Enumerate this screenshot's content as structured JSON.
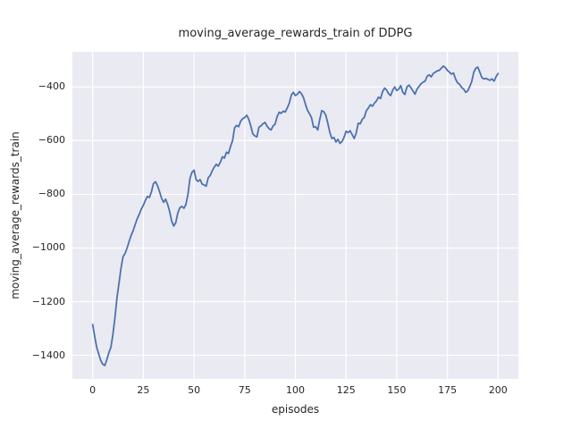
{
  "chart_data": {
    "type": "line",
    "title": "moving_average_rewards_train of DDPG",
    "xlabel": "episodes",
    "ylabel": "moving_average_rewards_train",
    "grid": true,
    "legend_position": "none",
    "xlim": [
      -10,
      210
    ],
    "ylim": [
      -1488,
      -269
    ],
    "x_ticks": [
      0,
      25,
      50,
      75,
      100,
      125,
      150,
      175,
      200
    ],
    "x_tick_labels": [
      "0",
      "25",
      "50",
      "75",
      "100",
      "125",
      "150",
      "175",
      "200"
    ],
    "y_ticks": [
      -400,
      -600,
      -800,
      -1000,
      -1200,
      -1400
    ],
    "y_tick_labels": [
      "−400",
      "−600",
      "−800",
      "−1000",
      "−1200",
      "−1400"
    ],
    "colors": {
      "figure_background": "#FFFFFF",
      "axes_background": "#EAEAF2",
      "gridline": "#FFFFFF",
      "line": "#4C72B0",
      "text": "#262626"
    },
    "series": [
      {
        "name": "moving_average_rewards_train",
        "color": "#4C72B0",
        "x_start": 0,
        "x_step": 1,
        "values": [
          -1285,
          -1330,
          -1370,
          -1395,
          -1420,
          -1433,
          -1438,
          -1415,
          -1390,
          -1370,
          -1320,
          -1260,
          -1185,
          -1130,
          -1075,
          -1032,
          -1020,
          -1000,
          -975,
          -952,
          -935,
          -912,
          -890,
          -875,
          -855,
          -841,
          -822,
          -808,
          -812,
          -790,
          -760,
          -753,
          -768,
          -790,
          -815,
          -830,
          -818,
          -838,
          -865,
          -900,
          -918,
          -905,
          -870,
          -850,
          -845,
          -852,
          -838,
          -800,
          -740,
          -718,
          -710,
          -745,
          -752,
          -745,
          -762,
          -765,
          -770,
          -738,
          -730,
          -712,
          -698,
          -688,
          -695,
          -680,
          -660,
          -665,
          -643,
          -648,
          -622,
          -600,
          -552,
          -543,
          -548,
          -527,
          -518,
          -514,
          -505,
          -520,
          -545,
          -575,
          -582,
          -586,
          -550,
          -545,
          -537,
          -532,
          -545,
          -555,
          -560,
          -545,
          -538,
          -510,
          -494,
          -498,
          -490,
          -493,
          -478,
          -460,
          -430,
          -420,
          -432,
          -427,
          -417,
          -425,
          -440,
          -465,
          -487,
          -500,
          -515,
          -550,
          -548,
          -560,
          -522,
          -488,
          -492,
          -505,
          -535,
          -570,
          -592,
          -588,
          -605,
          -595,
          -610,
          -603,
          -588,
          -565,
          -570,
          -563,
          -577,
          -592,
          -572,
          -535,
          -537,
          -520,
          -513,
          -488,
          -478,
          -466,
          -472,
          -460,
          -452,
          -438,
          -443,
          -418,
          -404,
          -412,
          -425,
          -432,
          -412,
          -400,
          -413,
          -408,
          -395,
          -420,
          -428,
          -400,
          -393,
          -403,
          -415,
          -427,
          -408,
          -398,
          -388,
          -382,
          -378,
          -360,
          -355,
          -362,
          -350,
          -345,
          -340,
          -338,
          -330,
          -322,
          -328,
          -338,
          -345,
          -352,
          -348,
          -370,
          -385,
          -390,
          -402,
          -408,
          -420,
          -415,
          -398,
          -380,
          -345,
          -330,
          -326,
          -345,
          -365,
          -370,
          -368,
          -372,
          -375,
          -370,
          -378,
          -362,
          -350
        ]
      }
    ]
  }
}
